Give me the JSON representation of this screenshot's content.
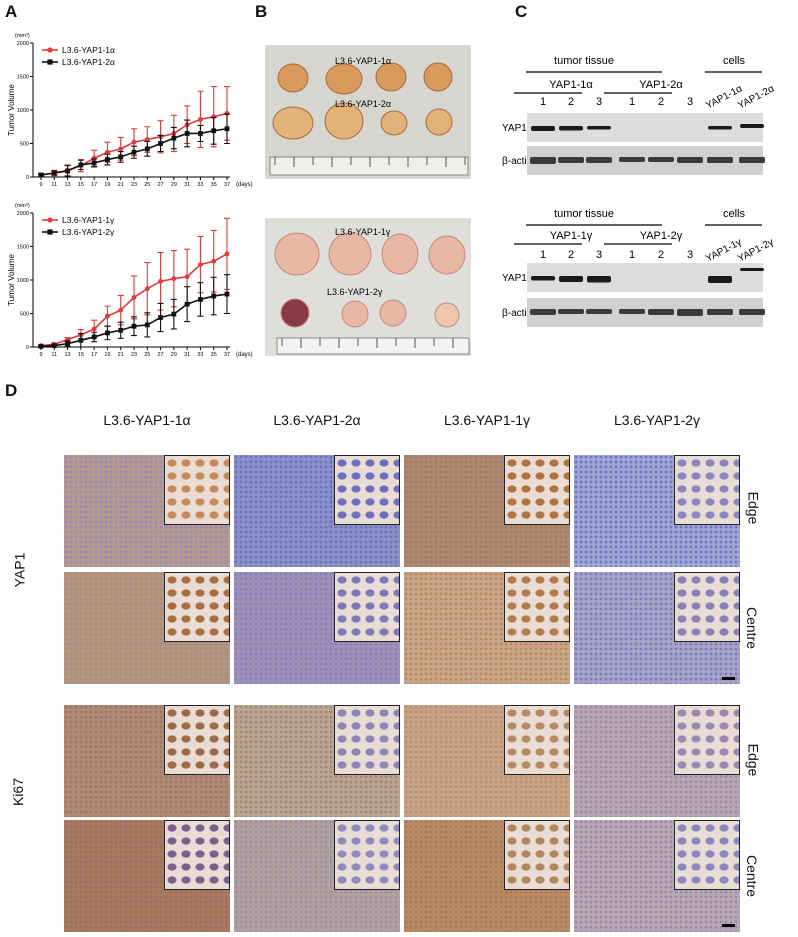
{
  "panels": {
    "A": "A",
    "B": "B",
    "C": "C",
    "D": "D"
  },
  "chart_data": [
    {
      "type": "line",
      "ylabel": "Tumor Volume",
      "yunit": "(mm³)",
      "xunit": "(days)",
      "x": [
        9,
        11,
        13,
        15,
        17,
        19,
        21,
        23,
        25,
        27,
        29,
        31,
        33,
        35,
        37
      ],
      "ylim": [
        0,
        2000
      ],
      "yticks": [
        0,
        500,
        1000,
        1500,
        2000
      ],
      "legend": "top-left",
      "series": [
        {
          "name": "L3.6-YAP1-1α",
          "color": "#e03a3a",
          "marker": "circle",
          "values": [
            30,
            60,
            100,
            170,
            280,
            370,
            420,
            520,
            560,
            600,
            650,
            780,
            860,
            900,
            950
          ],
          "errors": [
            20,
            40,
            80,
            90,
            120,
            150,
            170,
            200,
            190,
            240,
            270,
            280,
            420,
            450,
            400
          ]
        },
        {
          "name": "L3.6-YAP1-2α",
          "color": "#111111",
          "marker": "square",
          "values": [
            30,
            60,
            90,
            180,
            210,
            260,
            300,
            370,
            420,
            500,
            580,
            650,
            650,
            690,
            720
          ],
          "errors": [
            15,
            30,
            80,
            70,
            60,
            80,
            80,
            90,
            110,
            120,
            160,
            200,
            120,
            200,
            220
          ]
        }
      ]
    },
    {
      "type": "line",
      "ylabel": "Tumor Volume",
      "yunit": "(mm³)",
      "xunit": "(days)",
      "x": [
        9,
        11,
        13,
        15,
        17,
        19,
        21,
        23,
        25,
        27,
        29,
        31,
        33,
        35,
        37
      ],
      "ylim": [
        0,
        2000
      ],
      "yticks": [
        0,
        500,
        1000,
        1500,
        2000
      ],
      "legend": "top-left",
      "series": [
        {
          "name": "L3.6-YAP1-1γ",
          "color": "#e03a3a",
          "marker": "circle",
          "values": [
            20,
            40,
            110,
            180,
            270,
            460,
            550,
            740,
            870,
            980,
            1020,
            1050,
            1230,
            1280,
            1390
          ],
          "errors": [
            10,
            20,
            30,
            80,
            130,
            150,
            220,
            320,
            390,
            430,
            420,
            410,
            420,
            460,
            530
          ]
        },
        {
          "name": "L3.6-YAP1-2γ",
          "color": "#111111",
          "marker": "square",
          "values": [
            10,
            20,
            50,
            100,
            150,
            210,
            250,
            310,
            330,
            440,
            490,
            640,
            710,
            760,
            790
          ],
          "errors": [
            10,
            20,
            40,
            100,
            70,
            100,
            120,
            140,
            180,
            210,
            220,
            260,
            250,
            280,
            290
          ]
        }
      ]
    }
  ],
  "photos": [
    {
      "label_top": "L3.6-YAP1-1α",
      "label_bottom": "L3.6-YAP1-2α"
    },
    {
      "label_top": "L3.6-YAP1-1γ",
      "label_bottom": "L3.6-YAP1-2γ"
    }
  ],
  "blots": [
    {
      "header": "tumor tissue",
      "cells_header": "cells",
      "groups": [
        "YAP1-1α",
        "YAP1-2α"
      ],
      "lanes": [
        "1",
        "2",
        "3",
        "1",
        "2",
        "3"
      ],
      "cell_lanes": [
        "YAP1-1α",
        "YAP1-2α"
      ],
      "rows": [
        "YAP1",
        "β-actin"
      ]
    },
    {
      "header": "tumor tissue",
      "cells_header": "cells",
      "groups": [
        "YAP1-1γ",
        "YAP1-2γ"
      ],
      "lanes": [
        "1",
        "2",
        "3",
        "1",
        "2",
        "3"
      ],
      "cell_lanes": [
        "YAP1-1γ",
        "YAP1-2γ"
      ],
      "rows": [
        "YAP1",
        "β-actin"
      ]
    }
  ],
  "ihc": {
    "columns": [
      "L3.6-YAP1-1α",
      "L3.6-YAP1-2α",
      "L3.6-YAP1-1γ",
      "L3.6-YAP1-2γ"
    ],
    "stains": [
      "YAP1",
      "Ki67"
    ],
    "regions": [
      "Edge",
      "Centre"
    ]
  }
}
